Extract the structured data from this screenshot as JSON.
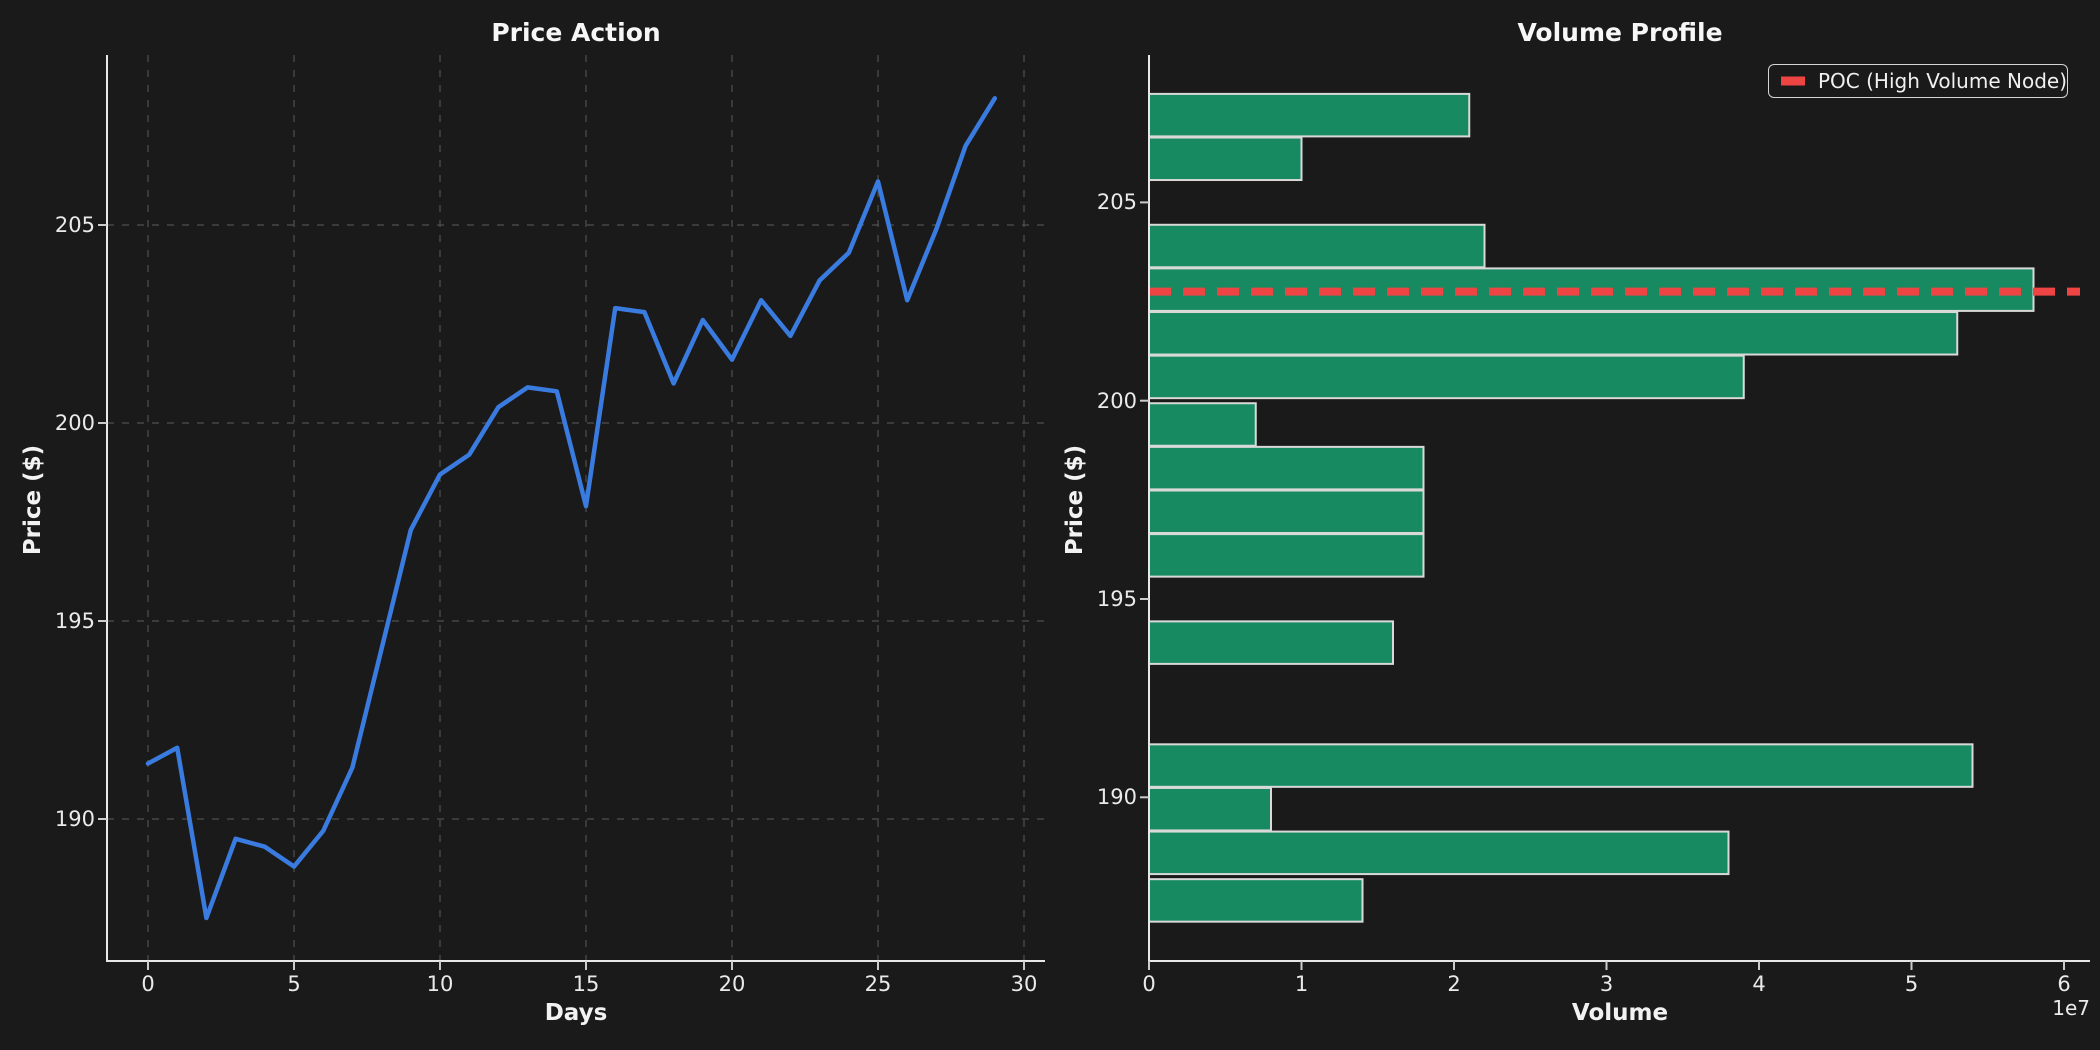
{
  "figure": {
    "background": "#1a1a1a",
    "text_color": "#eaeaea"
  },
  "left_chart": {
    "title": "Price Action",
    "xlabel": "Days",
    "ylabel": "Price ($)",
    "xtick_labels": [
      "0",
      "5",
      "10",
      "15",
      "20",
      "25",
      "30"
    ],
    "ytick_labels": [
      "205",
      "200",
      "195",
      "190"
    ]
  },
  "right_chart": {
    "title": "Volume Profile",
    "xlabel": "Volume",
    "ylabel": "Price ($)",
    "offset_label": "1e7",
    "xtick_labels": [
      "0",
      "1",
      "2",
      "3",
      "4",
      "5",
      "6"
    ],
    "ytick_labels": [
      "205",
      "200",
      "195",
      "190"
    ],
    "legend": {
      "poc_label": "POC (High Volume Node)"
    }
  },
  "chart_data": [
    {
      "type": "line",
      "title": "Price Action",
      "xlabel": "Days",
      "ylabel": "Price ($)",
      "x": [
        0,
        1,
        2,
        3,
        4,
        5,
        6,
        7,
        8,
        9,
        10,
        11,
        12,
        13,
        14,
        15,
        16,
        17,
        18,
        19,
        20,
        21,
        22,
        23,
        24,
        25,
        26,
        27,
        28,
        29
      ],
      "y": [
        191.4,
        191.8,
        187.5,
        189.5,
        189.3,
        188.8,
        189.7,
        191.3,
        194.3,
        197.3,
        198.7,
        199.2,
        200.4,
        200.9,
        200.8,
        197.9,
        202.9,
        202.8,
        201.0,
        202.6,
        201.6,
        203.1,
        202.2,
        203.6,
        204.3,
        206.1,
        203.1,
        204.9,
        207.0,
        208.2
      ],
      "xticks": [
        0,
        5,
        10,
        15,
        20,
        25,
        30
      ],
      "yticks": [
        190,
        195,
        200,
        205
      ],
      "xlim": [
        -1.45,
        30.45
      ],
      "ylim": [
        186.4,
        209.3
      ],
      "grid": true,
      "line_color": "#3a7be0",
      "line_width": 4.5
    },
    {
      "type": "bar",
      "orientation": "horizontal",
      "title": "Volume Profile",
      "xlabel": "Volume",
      "ylabel": "Price ($)",
      "unit_multiplier": "1e7",
      "categories": [
        207.2,
        206.1,
        203.9,
        202.8,
        201.7,
        200.6,
        199.4,
        198.3,
        197.2,
        196.1,
        193.9,
        190.8,
        189.7,
        188.6,
        187.4
      ],
      "values": [
        2.1,
        1.0,
        2.2,
        5.8,
        5.3,
        3.9,
        0.7,
        1.8,
        1.8,
        1.8,
        1.6,
        5.4,
        0.8,
        3.8,
        1.4
      ],
      "xticks": [
        0,
        1,
        2,
        3,
        4,
        5,
        6
      ],
      "yticks": [
        190,
        195,
        200,
        205
      ],
      "xlim": [
        0,
        6.17
      ],
      "ylim": [
        185.9,
        208.7
      ],
      "grid": false,
      "poc_price": 202.75,
      "poc_volume": 5.8,
      "bar_color": "#178a62",
      "bar_edge_color": "#d9d9d9",
      "poc_color": "#ee4444",
      "legend_label": "POC (High Volume Node)",
      "legend_position": "upper right"
    }
  ]
}
